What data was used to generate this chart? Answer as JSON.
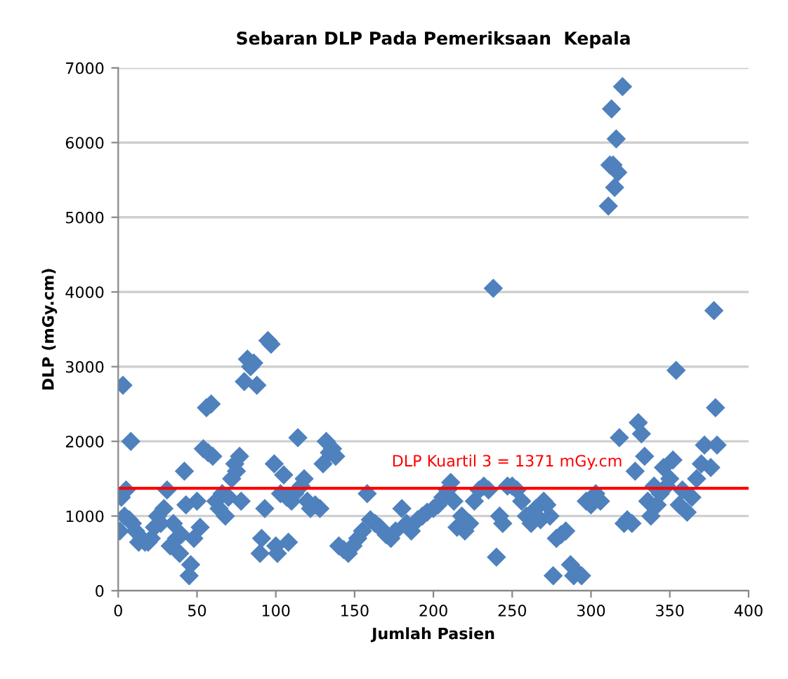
{
  "chart_data": {
    "type": "scatter",
    "title": "Sebaran DLP Pada Pemeriksaan  Kepala",
    "xlabel": "Jumlah Pasien",
    "ylabel": "DLP (mGy.cm)",
    "xlim": [
      0,
      400
    ],
    "xticks": [
      0,
      50,
      100,
      150,
      200,
      250,
      300,
      350,
      400
    ],
    "ylim": [
      0,
      7000
    ],
    "yticks": [
      0,
      1000,
      2000,
      3000,
      4000,
      5000,
      6000,
      7000
    ],
    "grid": "y",
    "marker": "diamond",
    "ref_lines": [
      {
        "axis": "y",
        "value": 1371,
        "label": "DLP Kuartil 3 = 1371 mGy.cm",
        "color": "#ff0000",
        "line_style": "solid"
      }
    ],
    "series": [
      {
        "color": "#4f81bd",
        "x": [
          1,
          2,
          3,
          4,
          5,
          7,
          8,
          9,
          11,
          13,
          15,
          17,
          19,
          21,
          23,
          25,
          27,
          29,
          31,
          33,
          35,
          37,
          39,
          40,
          42,
          43,
          45,
          46,
          48,
          50,
          52,
          54,
          56,
          57,
          59,
          60,
          62,
          64,
          66,
          68,
          70,
          72,
          74,
          75,
          77,
          78,
          80,
          82,
          84,
          86,
          88,
          90,
          91,
          93,
          95,
          97,
          99,
          100,
          101,
          103,
          105,
          107,
          108,
          110,
          112,
          114,
          116,
          118,
          120,
          122,
          125,
          128,
          130,
          132,
          134,
          136,
          138,
          140,
          143,
          146,
          149,
          152,
          155,
          158,
          160,
          163,
          166,
          170,
          173,
          176,
          180,
          183,
          186,
          190,
          193,
          196,
          200,
          203,
          206,
          209,
          211,
          213,
          215,
          218,
          220,
          223,
          226,
          229,
          232,
          235,
          238,
          240,
          242,
          244,
          247,
          250,
          253,
          256,
          259,
          262,
          265,
          268,
          270,
          272,
          274,
          276,
          278,
          281,
          284,
          287,
          289,
          291,
          294,
          297,
          300,
          303,
          306,
          311,
          312,
          313,
          314,
          315,
          316,
          317,
          318,
          320,
          321,
          323,
          326,
          328,
          330,
          332,
          334,
          336,
          338,
          340,
          342,
          344,
          346,
          348,
          350,
          352,
          354,
          356,
          358,
          361,
          364,
          367,
          370,
          372,
          376,
          378,
          379,
          380
        ],
        "values": [
          800,
          1250,
          2750,
          1000,
          1350,
          950,
          2000,
          900,
          800,
          650,
          700,
          650,
          650,
          700,
          850,
          1000,
          900,
          1100,
          1350,
          600,
          900,
          700,
          500,
          750,
          1600,
          1150,
          200,
          350,
          700,
          1200,
          850,
          1900,
          2450,
          1850,
          2500,
          1800,
          1200,
          1100,
          1300,
          1000,
          1250,
          1500,
          1700,
          1600,
          1800,
          1200,
          2800,
          3100,
          3000,
          3050,
          2750,
          500,
          700,
          1100,
          3350,
          3300,
          1700,
          600,
          500,
          1300,
          1550,
          1250,
          650,
          1200,
          1300,
          2050,
          1400,
          1500,
          1200,
          1100,
          1150,
          1100,
          1700,
          2000,
          1850,
          1900,
          1800,
          600,
          550,
          500,
          600,
          700,
          800,
          1300,
          950,
          900,
          850,
          750,
          700,
          800,
          1100,
          900,
          800,
          950,
          1000,
          1050,
          1100,
          1150,
          1250,
          1350,
          1450,
          1200,
          850,
          1000,
          800,
          900,
          1200,
          1350,
          1400,
          1350,
          4050,
          450,
          1000,
          900,
          1400,
          1400,
          1350,
          1200,
          1000,
          900,
          1100,
          950,
          1200,
          1150,
          1000,
          200,
          700,
          750,
          800,
          350,
          200,
          250,
          200,
          1200,
          1150,
          1300,
          1200,
          5150,
          5700,
          6450,
          5700,
          5400,
          6050,
          5600,
          2050,
          6750,
          900,
          950,
          900,
          1600,
          2250,
          2100,
          1800,
          1200,
          1000,
          1400,
          1150,
          1300,
          1650,
          1400,
          1500,
          1750,
          2950,
          1150,
          1350,
          1050,
          1250,
          1500,
          1700,
          1950,
          1650,
          3750,
          2450,
          1950
        ]
      }
    ]
  }
}
